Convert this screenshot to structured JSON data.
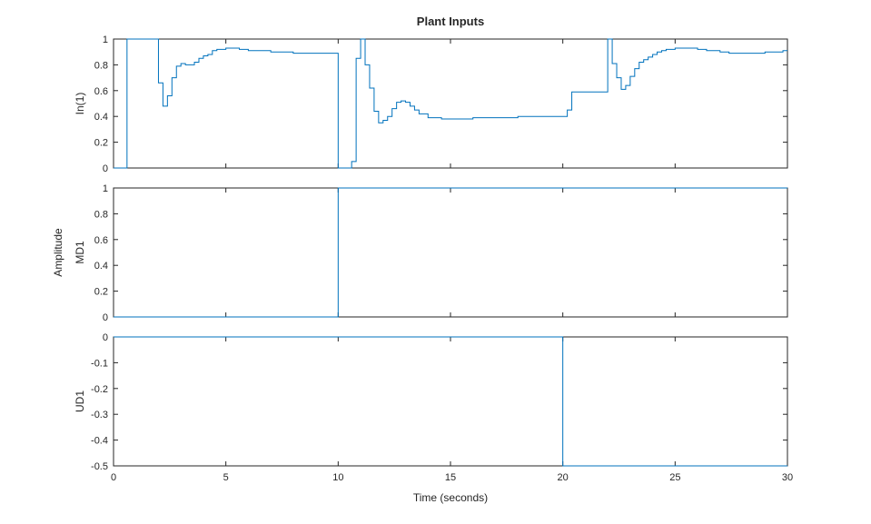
{
  "chart_data": {
    "type": "line",
    "title": "Plant Inputs",
    "shared_ylabel": "Amplitude",
    "xlabel": "Time (seconds)",
    "xlim": [
      0,
      30
    ],
    "x_ticks": [
      0,
      5,
      10,
      15,
      20,
      25,
      30
    ],
    "x_tick_labels": [
      "0",
      "5",
      "10",
      "15",
      "20",
      "25",
      "30"
    ],
    "line_color": "#0072bd",
    "grid": false,
    "subplots": [
      {
        "ylabel": "In(1)",
        "ylim": [
          0,
          1
        ],
        "y_ticks": [
          0,
          0.2,
          0.4,
          0.6,
          0.8,
          1
        ],
        "y_tick_labels": [
          "0",
          "0.2",
          "0.4",
          "0.6",
          "0.8",
          "1"
        ],
        "step": true,
        "x": [
          0,
          0.6,
          2.0,
          2.2,
          2.4,
          2.6,
          2.8,
          3.0,
          3.2,
          3.4,
          3.6,
          3.8,
          4.0,
          4.2,
          4.4,
          4.6,
          5.0,
          5.6,
          6.0,
          6.4,
          7.0,
          7.2,
          8.0,
          9.0,
          10.0,
          10.6,
          10.8,
          11.0,
          11.2,
          11.4,
          11.6,
          11.8,
          12.0,
          12.2,
          12.4,
          12.6,
          12.8,
          13.0,
          13.2,
          13.4,
          13.6,
          14.0,
          14.6,
          15.0,
          16.0,
          17.0,
          18.0,
          19.0,
          20.0,
          20.2,
          20.4,
          22.0,
          22.2,
          22.4,
          22.6,
          22.8,
          23.0,
          23.2,
          23.4,
          23.6,
          23.8,
          24.0,
          24.2,
          24.4,
          24.6,
          25.0,
          25.6,
          26.0,
          26.4,
          27.0,
          27.4,
          28.0,
          29.0,
          29.6,
          29.8
        ],
        "values": [
          0,
          1,
          0.66,
          0.48,
          0.56,
          0.7,
          0.79,
          0.81,
          0.8,
          0.8,
          0.82,
          0.85,
          0.87,
          0.88,
          0.91,
          0.92,
          0.93,
          0.92,
          0.91,
          0.91,
          0.9,
          0.9,
          0.89,
          0.89,
          0,
          0.05,
          0.85,
          1,
          0.8,
          0.62,
          0.44,
          0.35,
          0.37,
          0.4,
          0.46,
          0.51,
          0.52,
          0.51,
          0.48,
          0.45,
          0.42,
          0.39,
          0.38,
          0.38,
          0.39,
          0.39,
          0.4,
          0.4,
          0.4,
          0.45,
          0.59,
          1,
          0.81,
          0.7,
          0.61,
          0.64,
          0.71,
          0.77,
          0.82,
          0.84,
          0.86,
          0.88,
          0.9,
          0.91,
          0.92,
          0.93,
          0.93,
          0.92,
          0.91,
          0.9,
          0.89,
          0.89,
          0.9,
          0.9,
          0.91
        ]
      },
      {
        "ylabel": "MD1",
        "ylim": [
          0,
          1
        ],
        "y_ticks": [
          0,
          0.2,
          0.4,
          0.6,
          0.8,
          1
        ],
        "y_tick_labels": [
          "0",
          "0.2",
          "0.4",
          "0.6",
          "0.8",
          "1"
        ],
        "step": true,
        "x": [
          0,
          10,
          30
        ],
        "values": [
          0,
          1,
          1
        ]
      },
      {
        "ylabel": "UD1",
        "ylim": [
          -0.5,
          0
        ],
        "y_ticks": [
          -0.5,
          -0.4,
          -0.3,
          -0.2,
          -0.1,
          0
        ],
        "y_tick_labels": [
          "-0.5",
          "-0.4",
          "-0.3",
          "-0.2",
          "-0.1",
          "0"
        ],
        "step": true,
        "x": [
          0,
          20,
          30
        ],
        "values": [
          0,
          -0.5,
          -0.5
        ]
      }
    ]
  }
}
